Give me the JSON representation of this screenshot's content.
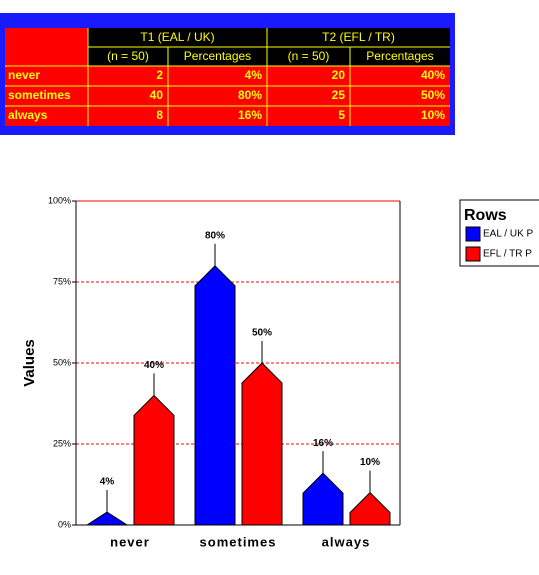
{
  "table": {
    "groups": [
      "T1 (EAL / UK)",
      "T2 (EFL / TR)"
    ],
    "columns": [
      "(n = 50)",
      "Percentages",
      "(n = 50)",
      "Percentages"
    ],
    "rows": [
      [
        "never",
        "2",
        "4%",
        "20",
        "40%"
      ],
      [
        "sometimes",
        "40",
        "80%",
        "25",
        "50%"
      ],
      [
        "always",
        "8",
        "16%",
        "5",
        "10%"
      ]
    ]
  },
  "chart_data": {
    "type": "bar",
    "ylabel": "Values",
    "legend_title": "Rows",
    "categories": [
      "never",
      "sometimes",
      "always"
    ],
    "series": [
      {
        "name": "EAL / UK P",
        "color": "#0000ff",
        "values": [
          4,
          80,
          16
        ],
        "value_labels": [
          "4%",
          "80%",
          "16%"
        ]
      },
      {
        "name": "EFL / TR P",
        "color": "#ff0000",
        "values": [
          40,
          50,
          10
        ],
        "value_labels": [
          "40%",
          "50%",
          "10%"
        ]
      }
    ],
    "ylim": [
      0,
      100
    ],
    "yticks": [
      {
        "value": 0,
        "label": "0%"
      },
      {
        "value": 25,
        "label": "25%"
      },
      {
        "value": 50,
        "label": "50%"
      },
      {
        "value": 75,
        "label": "75%"
      },
      {
        "value": 100,
        "label": "100%"
      }
    ],
    "grid": true
  }
}
